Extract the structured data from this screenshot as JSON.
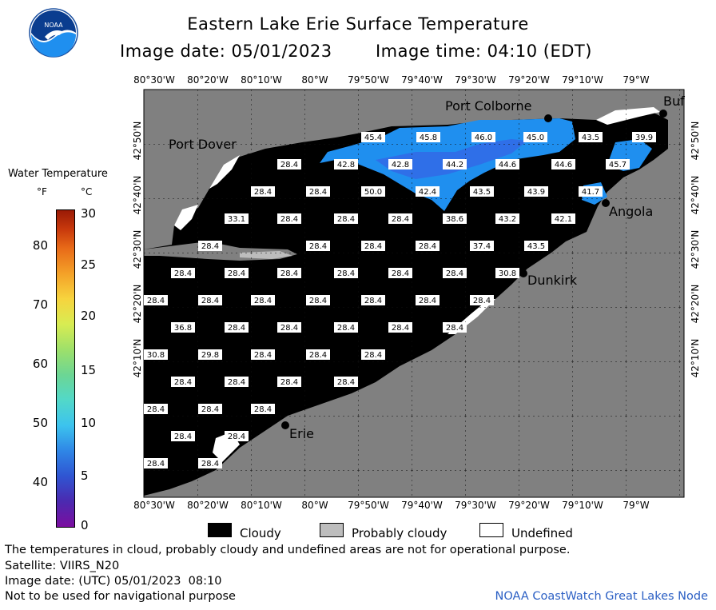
{
  "header": {
    "title": "Eastern Lake Erie Surface Temperature",
    "image_date": "Image date: 05/01/2023",
    "image_time": "Image time: 04:10 (EDT)",
    "logo_text": "NOAA"
  },
  "legend": {
    "title": "Water Temperature",
    "unit_f": "°F",
    "unit_c": "°C",
    "f_ticks": [
      "80",
      "70",
      "60",
      "50",
      "40"
    ],
    "c_ticks": [
      "30",
      "25",
      "20",
      "15",
      "10",
      "5",
      "0"
    ],
    "colorbar_colors": [
      "#7b0ea0",
      "#2f55d2",
      "#3cc3ee",
      "#6cd694",
      "#d8ec52",
      "#f4a128",
      "#9a1a06"
    ]
  },
  "map": {
    "top_lon_labels": [
      "80°30'W",
      "80°20'W",
      "80°10'W",
      "80°W",
      "79°50'W",
      "79°40'W",
      "79°30'W",
      "79°20'W",
      "79°10'W",
      "79°W"
    ],
    "bottom_lon_labels": [
      "80°30'W",
      "80°20'W",
      "80°10'W",
      "80°W",
      "79°50'W",
      "79°40'W",
      "79°30'W",
      "79°20'W",
      "79°10'W",
      "79°W"
    ],
    "left_lat_labels": [
      "42°50'N",
      "42°40'N",
      "42°30'N",
      "42°20'N",
      "42°10'N"
    ],
    "right_lat_labels": [
      "42°50'N",
      "42°40'N",
      "42°30'N",
      "42°20'N",
      "42°10'N"
    ],
    "cities": [
      "Port Colborne",
      "Port Dover",
      "Angola",
      "Dunkirk",
      "Erie",
      "Buf"
    ],
    "temperature_labels": [
      "45.4",
      "45.8",
      "46.0",
      "45.0",
      "43.5",
      "39.9",
      "28.4",
      "42.8",
      "42.8",
      "44.2",
      "44.6",
      "44.6",
      "45.7",
      "28.4",
      "28.4",
      "50.0",
      "42.4",
      "43.5",
      "43.9",
      "41.7",
      "33.1",
      "28.4",
      "28.4",
      "28.4",
      "38.6",
      "43.2",
      "42.1",
      "28.4",
      "28.4",
      "28.4",
      "28.4",
      "37.4",
      "43.5",
      "28.4",
      "28.4",
      "28.4",
      "28.4",
      "28.4",
      "28.4",
      "30.8",
      "28.4",
      "28.4",
      "28.4",
      "28.4",
      "28.4",
      "28.4",
      "28.4",
      "36.8",
      "28.4",
      "28.4",
      "28.4",
      "28.4",
      "28.4",
      "28.4",
      "30.8",
      "29.8",
      "28.4",
      "28.4",
      "28.4",
      "28.4",
      "28.4",
      "28.4",
      "28.4",
      "28.4",
      "28.4",
      "28.4",
      "28.4",
      "28.4",
      "28.4",
      "28.4"
    ],
    "colors": {
      "land": "#808080",
      "cloud": "#000000",
      "water_cool": "#1f8fef",
      "water_warm": "#2f6fe8"
    }
  },
  "key": {
    "cloudy": "Cloudy",
    "probably_cloudy": "Probably cloudy",
    "undefined": "Undefined"
  },
  "notes": {
    "line1": "The temperatures in cloud, probably cloudy and undefined areas are not for operational purpose.",
    "line2": "Satellite: VIIRS_N20",
    "line3": "Image date: (UTC) 05/01/2023  08:10",
    "line4": "Not to be used for navigational purpose",
    "credit": "NOAA CoastWatch Great Lakes Node"
  }
}
